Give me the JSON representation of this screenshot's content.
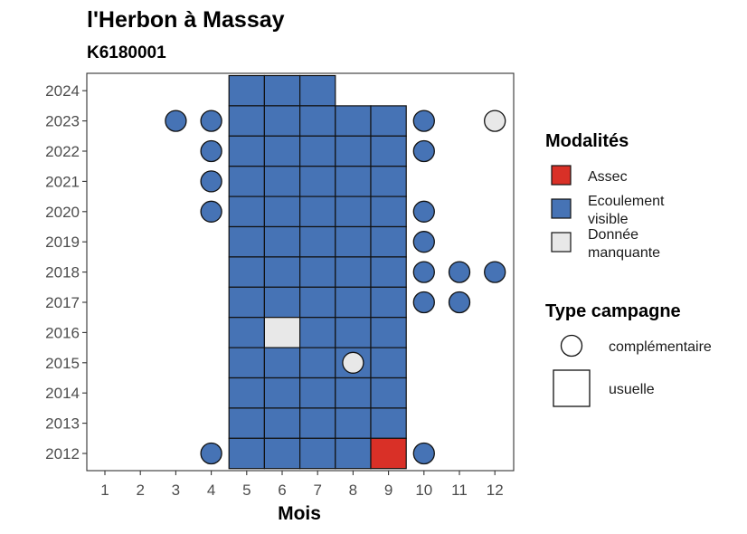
{
  "chart_data": {
    "type": "heatmap",
    "title": "l'Herbon à Massay",
    "subtitle": "K6180001",
    "xlabel": "Mois",
    "ylabel": "",
    "x_categories": [
      "1",
      "2",
      "3",
      "4",
      "5",
      "6",
      "7",
      "8",
      "9",
      "10",
      "11",
      "12"
    ],
    "y_categories": [
      "2012",
      "2013",
      "2014",
      "2015",
      "2016",
      "2017",
      "2018",
      "2019",
      "2020",
      "2021",
      "2022",
      "2023",
      "2024"
    ],
    "colors": {
      "Assec": "#d93027",
      "Ecoulement visible": "#4673b5",
      "Donnée manquante": "#e8e8e8"
    },
    "legend_modalites": {
      "title": "Modalités",
      "items": [
        {
          "key": "Assec",
          "label": [
            "Assec"
          ]
        },
        {
          "key": "Ecoulement visible",
          "label": [
            "Ecoulement",
            "visible"
          ]
        },
        {
          "key": "Donnée manquante",
          "label": [
            "Donnée",
            "manquante"
          ]
        }
      ]
    },
    "legend_type": {
      "title": "Type campagne",
      "items": [
        {
          "shape": "circle",
          "label": "complémentaire"
        },
        {
          "shape": "square",
          "label": "usuelle"
        }
      ]
    },
    "usuelle": [
      {
        "year": "2024",
        "months": [
          5,
          6,
          7
        ],
        "values": [
          "Ecoulement visible",
          "Ecoulement visible",
          "Ecoulement visible"
        ]
      },
      {
        "year": "2023",
        "months": [
          5,
          6,
          7,
          8,
          9
        ],
        "values": [
          "Ecoulement visible",
          "Ecoulement visible",
          "Ecoulement visible",
          "Ecoulement visible",
          "Ecoulement visible"
        ]
      },
      {
        "year": "2022",
        "months": [
          5,
          6,
          7,
          8,
          9
        ],
        "values": [
          "Ecoulement visible",
          "Ecoulement visible",
          "Ecoulement visible",
          "Ecoulement visible",
          "Ecoulement visible"
        ]
      },
      {
        "year": "2021",
        "months": [
          5,
          6,
          7,
          8,
          9
        ],
        "values": [
          "Ecoulement visible",
          "Ecoulement visible",
          "Ecoulement visible",
          "Ecoulement visible",
          "Ecoulement visible"
        ]
      },
      {
        "year": "2020",
        "months": [
          5,
          6,
          7,
          8,
          9
        ],
        "values": [
          "Ecoulement visible",
          "Ecoulement visible",
          "Ecoulement visible",
          "Ecoulement visible",
          "Ecoulement visible"
        ]
      },
      {
        "year": "2019",
        "months": [
          5,
          6,
          7,
          8,
          9
        ],
        "values": [
          "Ecoulement visible",
          "Ecoulement visible",
          "Ecoulement visible",
          "Ecoulement visible",
          "Ecoulement visible"
        ]
      },
      {
        "year": "2018",
        "months": [
          5,
          6,
          7,
          8,
          9
        ],
        "values": [
          "Ecoulement visible",
          "Ecoulement visible",
          "Ecoulement visible",
          "Ecoulement visible",
          "Ecoulement visible"
        ]
      },
      {
        "year": "2017",
        "months": [
          5,
          6,
          7,
          8,
          9
        ],
        "values": [
          "Ecoulement visible",
          "Ecoulement visible",
          "Ecoulement visible",
          "Ecoulement visible",
          "Ecoulement visible"
        ]
      },
      {
        "year": "2016",
        "months": [
          5,
          6,
          7,
          8,
          9
        ],
        "values": [
          "Ecoulement visible",
          "Donnée manquante",
          "Ecoulement visible",
          "Ecoulement visible",
          "Ecoulement visible"
        ]
      },
      {
        "year": "2015",
        "months": [
          5,
          6,
          7,
          8,
          9
        ],
        "values": [
          "Ecoulement visible",
          "Ecoulement visible",
          "Ecoulement visible",
          "Ecoulement visible",
          "Ecoulement visible"
        ]
      },
      {
        "year": "2014",
        "months": [
          5,
          6,
          7,
          8,
          9
        ],
        "values": [
          "Ecoulement visible",
          "Ecoulement visible",
          "Ecoulement visible",
          "Ecoulement visible",
          "Ecoulement visible"
        ]
      },
      {
        "year": "2013",
        "months": [
          5,
          6,
          7,
          8,
          9
        ],
        "values": [
          "Ecoulement visible",
          "Ecoulement visible",
          "Ecoulement visible",
          "Ecoulement visible",
          "Ecoulement visible"
        ]
      },
      {
        "year": "2012",
        "months": [
          5,
          6,
          7,
          8,
          9
        ],
        "values": [
          "Ecoulement visible",
          "Ecoulement visible",
          "Ecoulement visible",
          "Ecoulement visible",
          "Assec"
        ]
      }
    ],
    "complementaire": [
      {
        "year": "2023",
        "month": 3,
        "value": "Ecoulement visible"
      },
      {
        "year": "2023",
        "month": 4,
        "value": "Ecoulement visible"
      },
      {
        "year": "2023",
        "month": 10,
        "value": "Ecoulement visible"
      },
      {
        "year": "2023",
        "month": 12,
        "value": "Donnée manquante"
      },
      {
        "year": "2022",
        "month": 4,
        "value": "Ecoulement visible"
      },
      {
        "year": "2022",
        "month": 10,
        "value": "Ecoulement visible"
      },
      {
        "year": "2021",
        "month": 4,
        "value": "Ecoulement visible"
      },
      {
        "year": "2020",
        "month": 4,
        "value": "Ecoulement visible"
      },
      {
        "year": "2020",
        "month": 10,
        "value": "Ecoulement visible"
      },
      {
        "year": "2019",
        "month": 10,
        "value": "Ecoulement visible"
      },
      {
        "year": "2018",
        "month": 10,
        "value": "Ecoulement visible"
      },
      {
        "year": "2018",
        "month": 11,
        "value": "Ecoulement visible"
      },
      {
        "year": "2018",
        "month": 12,
        "value": "Ecoulement visible"
      },
      {
        "year": "2017",
        "month": 10,
        "value": "Ecoulement visible"
      },
      {
        "year": "2017",
        "month": 11,
        "value": "Ecoulement visible"
      },
      {
        "year": "2015",
        "month": 8,
        "value": "Donnée manquante"
      },
      {
        "year": "2012",
        "month": 4,
        "value": "Ecoulement visible"
      },
      {
        "year": "2012",
        "month": 10,
        "value": "Ecoulement visible"
      }
    ]
  }
}
